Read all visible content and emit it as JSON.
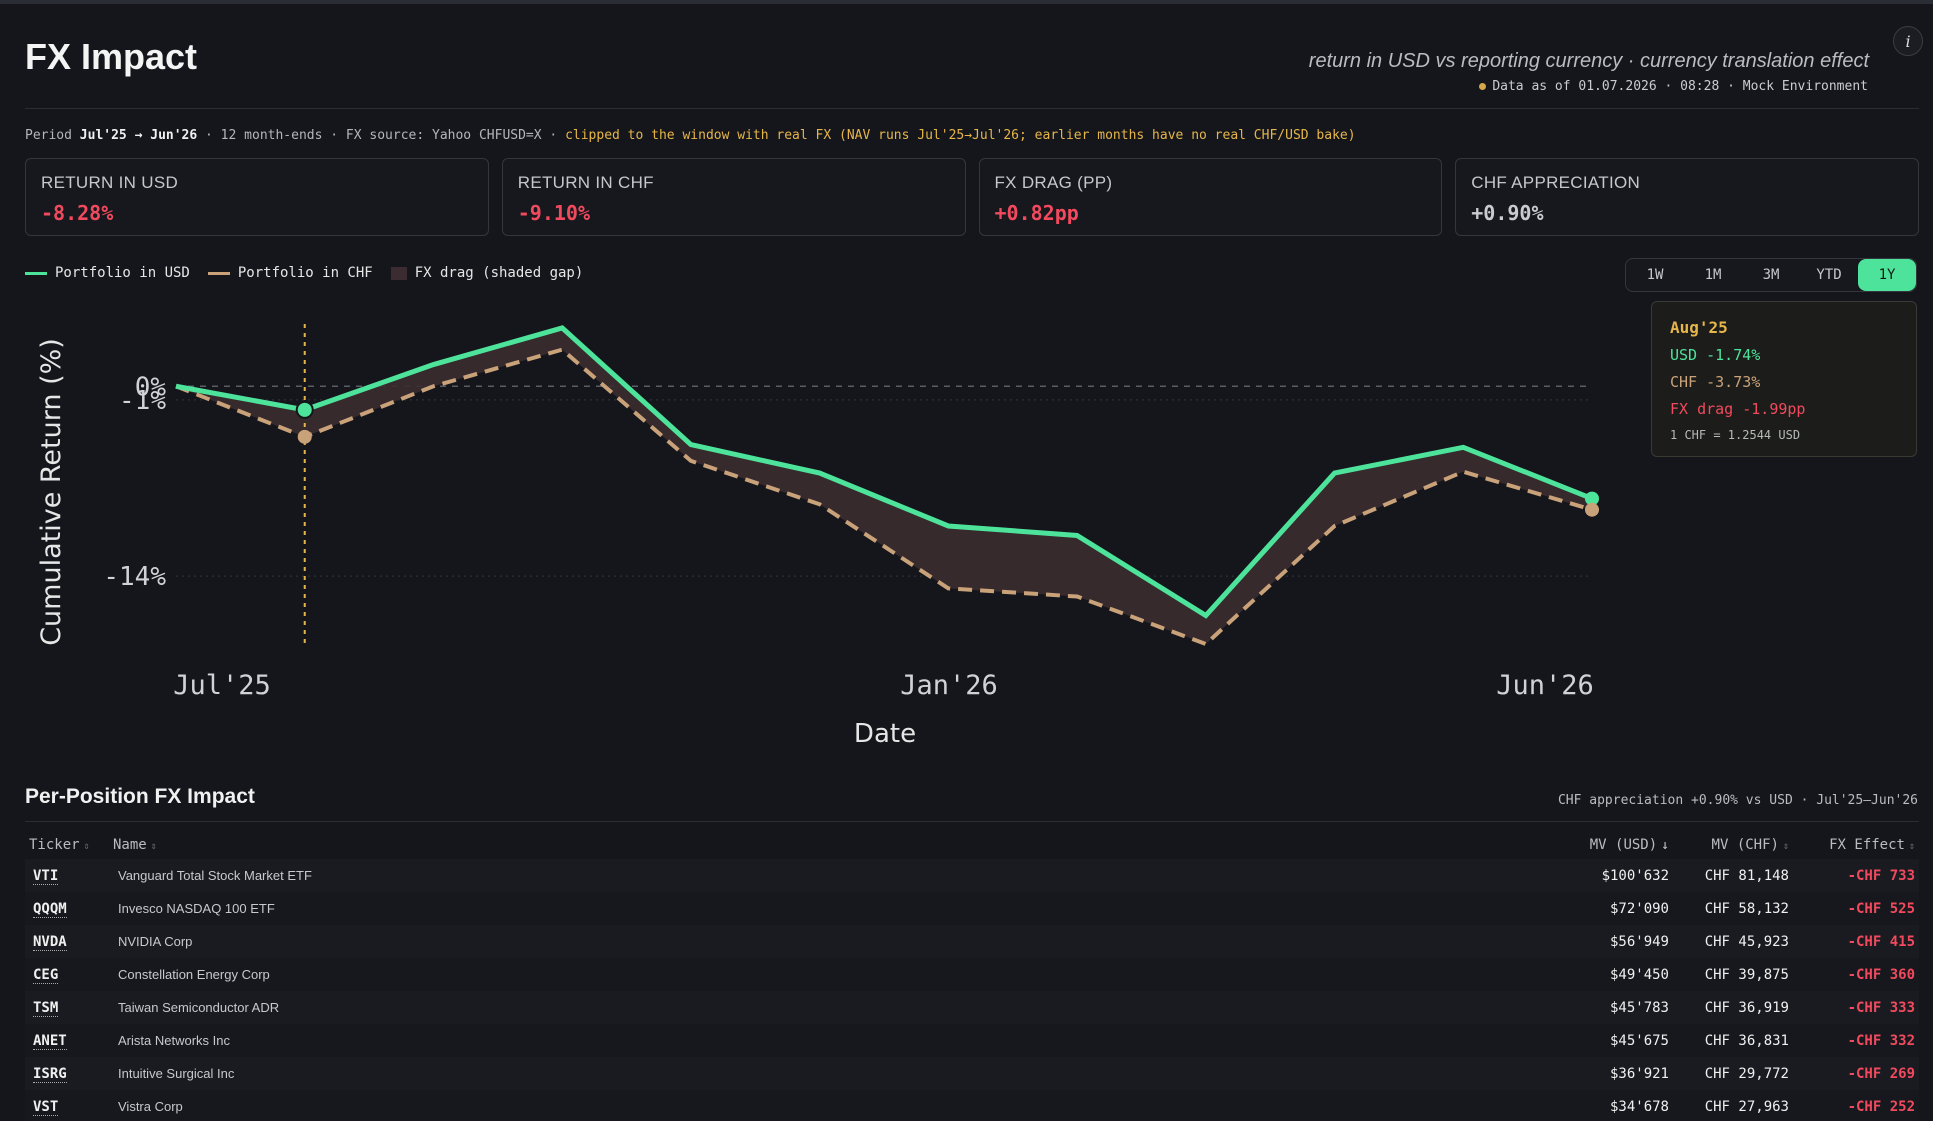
{
  "header": {
    "title": "FX Impact",
    "subtitle": "return in USD vs reporting currency · currency translation effect",
    "as_of": "Data as of 01.07.2026 · 08:28 · Mock Environment",
    "info_icon": "i"
  },
  "period": {
    "label": "Period",
    "range": "Jul'25 → Jun'26",
    "details": "· 12 month-ends · FX source: Yahoo CHFUSD=X ·",
    "warning": "clipped to the window with real FX (NAV runs Jul'25→Jul'26; earlier months have no real CHF/USD bake)"
  },
  "kpis": [
    {
      "label": "RETURN IN USD",
      "value": "-8.28%"
    },
    {
      "label": "RETURN IN CHF",
      "value": "-9.10%"
    },
    {
      "label": "FX DRAG (PP)",
      "value": "+0.82pp"
    },
    {
      "label": "CHF APPRECIATION",
      "value": "+0.90%"
    }
  ],
  "legend": {
    "usd": "Portfolio in USD",
    "chf": "Portfolio in CHF",
    "drag": "FX drag (shaded gap)"
  },
  "ranges": [
    "1W",
    "1M",
    "3M",
    "YTD",
    "1Y"
  ],
  "active_range": "1Y",
  "colors": {
    "usd": "#4ee39b",
    "chf": "#c9a27a",
    "drag": "#3a2c30",
    "negative": "#f14a5e",
    "accent": "#e7b64a"
  },
  "chart_data": {
    "type": "line",
    "xlabel": "Date",
    "ylabel": "Cumulative Return (%)",
    "x_ticks": [
      "Jul'25",
      "Jan'26",
      "Jun'26"
    ],
    "y_ticks": [
      "0%",
      "-1%",
      "-14%"
    ],
    "ylim": [
      -19,
      4
    ],
    "x": [
      "Jul'25",
      "Aug'25",
      "Sep'25",
      "Oct'25",
      "Nov'25",
      "Dec'25",
      "Jan'26",
      "Feb'26",
      "Mar'26",
      "Apr'26",
      "May'26",
      "Jun'26"
    ],
    "series": [
      {
        "name": "Portfolio in USD",
        "values": [
          0.0,
          -1.74,
          1.6,
          4.3,
          -4.3,
          -6.4,
          -10.3,
          -11.0,
          -16.9,
          -6.4,
          -4.5,
          -8.28
        ]
      },
      {
        "name": "Portfolio in CHF",
        "values": [
          0.0,
          -3.73,
          0.0,
          2.7,
          -5.5,
          -8.7,
          -14.9,
          -15.5,
          -19.0,
          -10.3,
          -6.3,
          -9.1
        ]
      }
    ],
    "highlight": {
      "x": "Aug'25",
      "usd": "-1.74%",
      "chf": "-3.73%"
    },
    "grid": true
  },
  "tooltip": {
    "title": "Aug'25",
    "usd": "USD -1.74%",
    "chf": "CHF -3.73%",
    "drag": "FX drag -1.99pp",
    "rate": "1 CHF = 1.2544 USD"
  },
  "positions": {
    "title": "Per-Position FX Impact",
    "note": "CHF appreciation +0.90% vs USD · Jul'25–Jun'26",
    "columns": [
      "Ticker",
      "Name",
      "MV (USD)",
      "MV (CHF)",
      "FX Effect"
    ],
    "rows": [
      {
        "ticker": "VTI",
        "name": "Vanguard Total Stock Market ETF",
        "mv_usd": "$100'632",
        "mv_chf": "CHF 81,148",
        "fx": "-CHF 733"
      },
      {
        "ticker": "QQQM",
        "name": "Invesco NASDAQ 100 ETF",
        "mv_usd": "$72'090",
        "mv_chf": "CHF 58,132",
        "fx": "-CHF 525"
      },
      {
        "ticker": "NVDA",
        "name": "NVIDIA Corp",
        "mv_usd": "$56'949",
        "mv_chf": "CHF 45,923",
        "fx": "-CHF 415"
      },
      {
        "ticker": "CEG",
        "name": "Constellation Energy Corp",
        "mv_usd": "$49'450",
        "mv_chf": "CHF 39,875",
        "fx": "-CHF 360"
      },
      {
        "ticker": "TSM",
        "name": "Taiwan Semiconductor ADR",
        "mv_usd": "$45'783",
        "mv_chf": "CHF 36,919",
        "fx": "-CHF 333"
      },
      {
        "ticker": "ANET",
        "name": "Arista Networks Inc",
        "mv_usd": "$45'675",
        "mv_chf": "CHF 36,831",
        "fx": "-CHF 332"
      },
      {
        "ticker": "ISRG",
        "name": "Intuitive Surgical Inc",
        "mv_usd": "$36'921",
        "mv_chf": "CHF 29,772",
        "fx": "-CHF 269"
      },
      {
        "ticker": "VST",
        "name": "Vistra Corp",
        "mv_usd": "$34'678",
        "mv_chf": "CHF 27,963",
        "fx": "-CHF 252"
      }
    ]
  }
}
